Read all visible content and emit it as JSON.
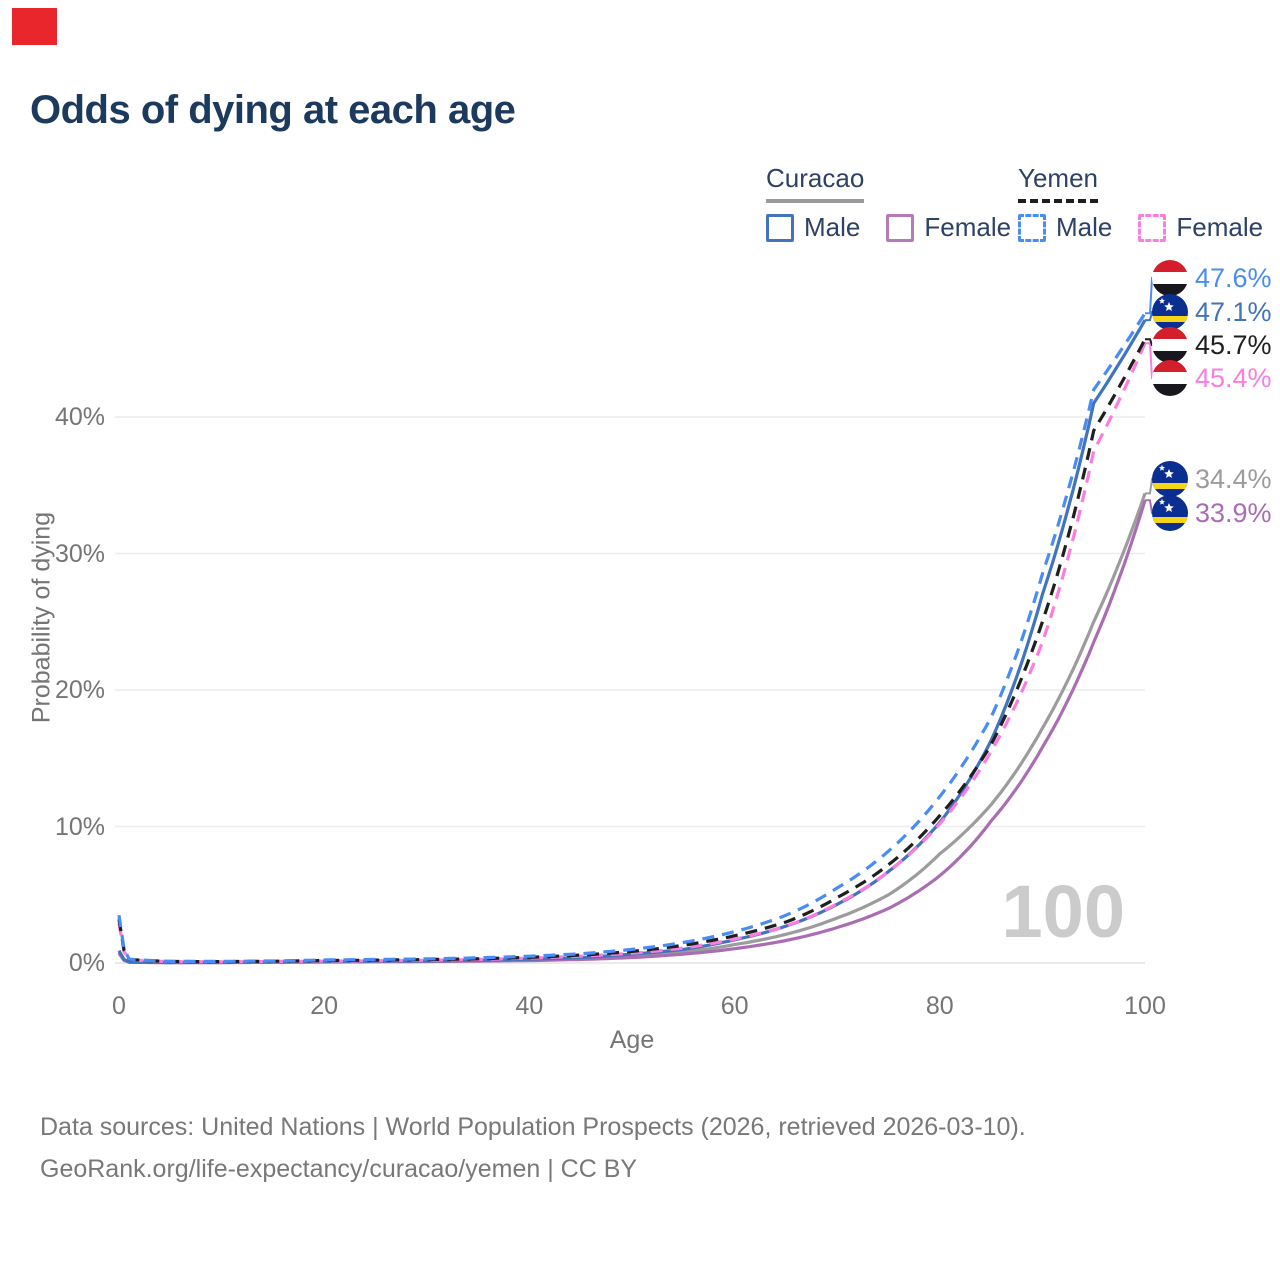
{
  "title": "Odds of dying at each age",
  "red_marker_color": "#e8262c",
  "legend": {
    "groups": [
      {
        "country": "Curacao",
        "underline_style": "solid",
        "underline_color": "#9a9a9a",
        "items": [
          {
            "label": "Male",
            "color": "#4273bd",
            "box_style": "solid"
          },
          {
            "label": "Female",
            "color": "#b77ab8",
            "box_style": "solid"
          }
        ]
      },
      {
        "country": "Yemen",
        "underline_style": "dashed",
        "underline_color": "#1f1f1f",
        "items": [
          {
            "label": "Male",
            "color": "#4a8cf5",
            "box_style": "dashed"
          },
          {
            "label": "Female",
            "color": "#fc7ce0",
            "box_style": "dashed"
          }
        ]
      }
    ]
  },
  "chart_data": {
    "type": "line",
    "title": "Odds of dying at each age",
    "xlabel": "Age",
    "ylabel": "Probability of dying",
    "xlim": [
      0,
      100
    ],
    "ylim": [
      0,
      48
    ],
    "grid": true,
    "xticks": [
      "0",
      "20",
      "40",
      "60",
      "80",
      "100"
    ],
    "xtick_values": [
      0,
      20,
      40,
      60,
      80,
      100
    ],
    "yticks": [
      "0%",
      "10%",
      "20%",
      "30%",
      "40%"
    ],
    "ytick_values": [
      0,
      10,
      20,
      30,
      40
    ],
    "ages": [
      0,
      1,
      5,
      10,
      15,
      20,
      25,
      30,
      35,
      40,
      45,
      50,
      55,
      60,
      65,
      70,
      75,
      80,
      85,
      90,
      95,
      100
    ],
    "series": [
      {
        "name": "curacao-total",
        "country": "Curacao",
        "sex": "Total",
        "color": "#9c9c9c",
        "dashed": false,
        "flag": "curacao",
        "end_label": "34.4%",
        "label_slot": 4,
        "values_pct": [
          0.8,
          0.06,
          0.03,
          0.04,
          0.06,
          0.09,
          0.11,
          0.13,
          0.16,
          0.22,
          0.32,
          0.5,
          0.8,
          1.35,
          2.1,
          3.3,
          5.0,
          8.0,
          11.6,
          17.2,
          25.0,
          34.4
        ]
      },
      {
        "name": "curacao-female",
        "country": "Curacao",
        "sex": "Female",
        "color": "#aa6db3",
        "dashed": false,
        "flag": "curacao",
        "end_label": "33.9%",
        "label_slot": 5,
        "values_pct": [
          0.7,
          0.05,
          0.03,
          0.03,
          0.05,
          0.07,
          0.09,
          0.11,
          0.14,
          0.18,
          0.26,
          0.4,
          0.65,
          1.05,
          1.65,
          2.6,
          4.0,
          6.4,
          10.4,
          15.8,
          23.5,
          33.9
        ]
      },
      {
        "name": "curacao-male",
        "country": "Curacao",
        "sex": "Male",
        "color": "#4273bd",
        "dashed": false,
        "flag": "curacao",
        "end_label": "47.1%",
        "label_slot": 1,
        "values_pct": [
          0.9,
          0.07,
          0.04,
          0.05,
          0.08,
          0.12,
          0.14,
          0.16,
          0.2,
          0.28,
          0.4,
          0.65,
          1.0,
          1.7,
          2.7,
          4.3,
          6.7,
          10.3,
          16.3,
          27.0,
          41.0,
          47.1
        ]
      },
      {
        "name": "yemen-female",
        "country": "Yemen",
        "sex": "Female",
        "color": "#fc7ce0",
        "dashed": true,
        "flag": "yemen",
        "end_label": "45.4%",
        "label_slot": 3,
        "values_pct": [
          2.9,
          0.24,
          0.1,
          0.09,
          0.11,
          0.14,
          0.17,
          0.2,
          0.26,
          0.36,
          0.5,
          0.72,
          1.1,
          1.75,
          2.7,
          4.35,
          6.7,
          10.2,
          15.5,
          23.5,
          37.5,
          45.4
        ]
      },
      {
        "name": "yemen-total",
        "country": "Yemen",
        "sex": "Total",
        "color": "#1f1f1f",
        "dashed": true,
        "flag": "yemen",
        "end_label": "45.7%",
        "label_slot": 2,
        "values_pct": [
          3.2,
          0.26,
          0.11,
          0.1,
          0.13,
          0.18,
          0.21,
          0.25,
          0.31,
          0.42,
          0.58,
          0.85,
          1.3,
          2.0,
          3.0,
          4.8,
          7.2,
          10.8,
          16.0,
          25.0,
          39.0,
          45.7
        ]
      },
      {
        "name": "yemen-male",
        "country": "Yemen",
        "sex": "Male",
        "color": "#4a8cf5",
        "dashed": true,
        "flag": "yemen",
        "end_label": "47.6%",
        "label_slot": 0,
        "values_pct": [
          3.5,
          0.28,
          0.12,
          0.12,
          0.15,
          0.22,
          0.26,
          0.3,
          0.38,
          0.5,
          0.68,
          1.0,
          1.5,
          2.3,
          3.5,
          5.5,
          8.2,
          12.2,
          18.0,
          28.5,
          42.0,
          47.6
        ]
      }
    ]
  },
  "watermark": "100",
  "footer": {
    "line1": "Data sources: United Nations | World Population Prospects (2026, retrieved 2026-03-10).",
    "line2": "GeoRank.org/life-expectancy/curacao/yemen | CC BY"
  }
}
